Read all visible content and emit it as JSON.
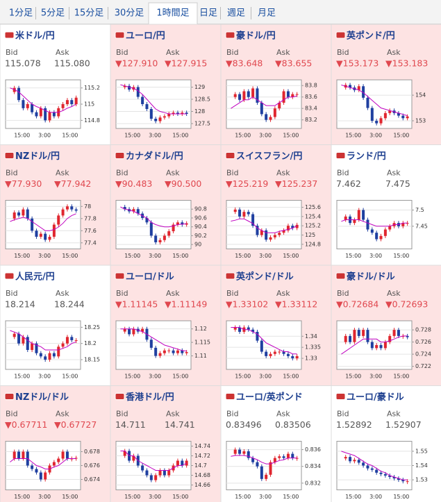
{
  "tabs": [
    "1分足",
    "5分足",
    "15分足",
    "30分足",
    "1時間足",
    "日足",
    "週足",
    "月足"
  ],
  "selected_tab": 4,
  "labels": {
    "bid": "Bid",
    "ask": "Ask"
  },
  "xticks": [
    "15:00",
    "3:00",
    "15:00"
  ],
  "charts": [
    {
      "pair": "米ドル/円",
      "bid": "115.078",
      "ask": "115.080",
      "highlight": false,
      "down": false,
      "ylim": [
        114.7,
        115.3
      ],
      "yticks": [
        114.8,
        115,
        115.2
      ],
      "close": [
        115.15,
        115.2,
        115.05,
        114.95,
        115.0,
        114.9,
        114.85,
        114.95,
        114.8,
        114.9,
        114.85,
        114.95,
        115.0,
        115.05,
        115.0,
        115.08
      ],
      "ma": [
        115.2,
        115.18,
        115.15,
        115.1,
        115.05,
        115.0,
        114.97,
        114.95,
        114.92,
        114.9,
        114.9,
        114.9,
        114.92,
        114.95,
        114.97,
        115.0
      ]
    },
    {
      "pair": "ユーロ/円",
      "bid": "▼127.910",
      "ask": "▼127.915",
      "highlight": true,
      "down": true,
      "ylim": [
        127.3,
        129.3
      ],
      "yticks": [
        127.5,
        128,
        128.5,
        129
      ],
      "close": [
        129.0,
        129.05,
        128.9,
        129.0,
        128.6,
        128.3,
        128.1,
        127.7,
        127.6,
        127.75,
        127.8,
        127.9,
        127.95,
        127.9,
        127.95,
        127.9
      ],
      "ma": [
        129.1,
        129.05,
        129.0,
        128.95,
        128.85,
        128.7,
        128.5,
        128.3,
        128.1,
        128.0,
        127.95,
        127.9,
        127.9,
        127.9,
        127.9,
        127.9
      ]
    },
    {
      "pair": "豪ドル/円",
      "bid": "▼83.648",
      "ask": "▼83.655",
      "highlight": true,
      "down": true,
      "ylim": [
        83.05,
        83.9
      ],
      "yticks": [
        83.2,
        83.4,
        83.6,
        83.8
      ],
      "close": [
        83.6,
        83.65,
        83.55,
        83.7,
        83.6,
        83.75,
        83.5,
        83.3,
        83.2,
        83.25,
        83.4,
        83.5,
        83.7,
        83.6,
        83.65,
        83.65
      ],
      "ma": [
        83.4,
        83.45,
        83.5,
        83.55,
        83.55,
        83.6,
        83.55,
        83.5,
        83.45,
        83.45,
        83.45,
        83.5,
        83.55,
        83.6,
        83.6,
        83.62
      ]
    },
    {
      "pair": "英ポンド/円",
      "bid": "▼153.173",
      "ask": "▼153.183",
      "highlight": true,
      "down": true,
      "ylim": [
        152.7,
        154.6
      ],
      "yticks": [
        153,
        154
      ],
      "close": [
        154.3,
        154.4,
        154.3,
        154.2,
        154.35,
        153.9,
        153.5,
        153.0,
        152.9,
        153.1,
        153.3,
        153.4,
        153.3,
        153.2,
        153.1,
        153.17
      ],
      "ma": [
        154.4,
        154.35,
        154.3,
        154.25,
        154.2,
        154.1,
        153.95,
        153.8,
        153.65,
        153.5,
        153.45,
        153.4,
        153.35,
        153.3,
        153.25,
        153.2
      ]
    },
    {
      "pair": "NZドル/円",
      "bid": "▼77.930",
      "ask": "▼77.942",
      "highlight": true,
      "down": true,
      "ylim": [
        77.3,
        78.1
      ],
      "yticks": [
        77.4,
        77.6,
        77.8,
        78
      ],
      "close": [
        77.8,
        77.9,
        77.85,
        77.95,
        77.8,
        77.6,
        77.5,
        77.55,
        77.45,
        77.5,
        77.7,
        77.85,
        77.95,
        78.0,
        77.95,
        77.93
      ],
      "ma": [
        77.75,
        77.78,
        77.8,
        77.82,
        77.8,
        77.75,
        77.7,
        77.65,
        77.6,
        77.6,
        77.62,
        77.66,
        77.72,
        77.8,
        77.85,
        77.88
      ]
    },
    {
      "pair": "カナダドル/円",
      "bid": "▼90.483",
      "ask": "▼90.500",
      "highlight": true,
      "down": true,
      "ylim": [
        89.9,
        91.0
      ],
      "yticks": [
        90,
        90.2,
        90.4,
        90.6,
        90.8
      ],
      "close": [
        90.85,
        90.8,
        90.75,
        90.8,
        90.7,
        90.6,
        90.5,
        90.2,
        90.05,
        90.1,
        90.2,
        90.3,
        90.45,
        90.5,
        90.45,
        90.48
      ],
      "ma": [
        90.85,
        90.8,
        90.78,
        90.75,
        90.7,
        90.65,
        90.6,
        90.5,
        90.45,
        90.42,
        90.4,
        90.4,
        90.42,
        90.45,
        90.46,
        90.47
      ]
    },
    {
      "pair": "スイスフラン/円",
      "bid": "▼125.219",
      "ask": "▼125.237",
      "highlight": true,
      "down": true,
      "ylim": [
        124.7,
        125.75
      ],
      "yticks": [
        124.8,
        125,
        125.2,
        125.4,
        125.6
      ],
      "close": [
        125.5,
        125.55,
        125.4,
        125.5,
        125.45,
        125.2,
        125.0,
        125.1,
        124.9,
        124.95,
        125.0,
        125.05,
        125.1,
        125.2,
        125.15,
        125.22
      ],
      "ma": [
        125.3,
        125.32,
        125.35,
        125.35,
        125.3,
        125.25,
        125.15,
        125.1,
        125.05,
        125.05,
        125.05,
        125.08,
        125.1,
        125.12,
        125.15,
        125.2
      ]
    },
    {
      "pair": "ランド/円",
      "bid": "7.462",
      "ask": "7.475",
      "highlight": false,
      "down": false,
      "ylim": [
        7.38,
        7.53
      ],
      "yticks": [
        7.45,
        7.5
      ],
      "close": [
        7.47,
        7.48,
        7.46,
        7.47,
        7.5,
        7.47,
        7.44,
        7.43,
        7.41,
        7.42,
        7.44,
        7.45,
        7.46,
        7.45,
        7.46,
        7.46
      ],
      "ma": [
        7.465,
        7.47,
        7.47,
        7.47,
        7.47,
        7.465,
        7.46,
        7.455,
        7.45,
        7.45,
        7.45,
        7.45,
        7.455,
        7.455,
        7.46,
        7.46
      ]
    },
    {
      "pair": "人民元/円",
      "bid": "18.214",
      "ask": "18.244",
      "highlight": false,
      "down": false,
      "ylim": [
        18.12,
        18.27
      ],
      "yticks": [
        18.15,
        18.2,
        18.25
      ],
      "close": [
        18.22,
        18.23,
        18.2,
        18.22,
        18.18,
        18.2,
        18.17,
        18.16,
        18.15,
        18.17,
        18.16,
        18.19,
        18.2,
        18.22,
        18.21,
        18.21
      ],
      "ma": [
        18.24,
        18.235,
        18.23,
        18.22,
        18.21,
        18.2,
        18.195,
        18.19,
        18.18,
        18.18,
        18.18,
        18.18,
        18.185,
        18.19,
        18.2,
        18.205
      ]
    },
    {
      "pair": "ユーロ/ドル",
      "bid": "▼1.11145",
      "ask": "▼1.11149",
      "highlight": true,
      "down": true,
      "ylim": [
        1.105,
        1.123
      ],
      "yticks": [
        1.11,
        1.115,
        1.12
      ],
      "close": [
        1.119,
        1.12,
        1.118,
        1.12,
        1.119,
        1.12,
        1.116,
        1.113,
        1.11,
        1.111,
        1.112,
        1.112,
        1.111,
        1.112,
        1.111,
        1.1114
      ],
      "ma": [
        1.12,
        1.12,
        1.12,
        1.12,
        1.1195,
        1.119,
        1.118,
        1.117,
        1.116,
        1.115,
        1.114,
        1.1135,
        1.113,
        1.1125,
        1.112,
        1.1118
      ]
    },
    {
      "pair": "英ポンド/ドル",
      "bid": "▼1.33102",
      "ask": "▼1.33112",
      "highlight": true,
      "down": true,
      "ylim": [
        1.325,
        1.347
      ],
      "yticks": [
        1.33,
        1.335,
        1.34
      ],
      "close": [
        1.343,
        1.344,
        1.342,
        1.344,
        1.343,
        1.342,
        1.338,
        1.333,
        1.331,
        1.332,
        1.333,
        1.333,
        1.332,
        1.331,
        1.33,
        1.331
      ],
      "ma": [
        1.344,
        1.344,
        1.344,
        1.343,
        1.343,
        1.342,
        1.341,
        1.339,
        1.337,
        1.336,
        1.335,
        1.334,
        1.333,
        1.333,
        1.332,
        1.332
      ]
    },
    {
      "pair": "豪ドル/ドル",
      "bid": "▼0.72684",
      "ask": "▼0.72693",
      "highlight": true,
      "down": true,
      "ylim": [
        0.7215,
        0.7295
      ],
      "yticks": [
        0.722,
        0.724,
        0.726,
        0.728
      ],
      "close": [
        0.726,
        0.727,
        0.726,
        0.728,
        0.727,
        0.728,
        0.726,
        0.725,
        0.7255,
        0.725,
        0.726,
        0.727,
        0.728,
        0.727,
        0.727,
        0.7268
      ],
      "ma": [
        0.724,
        0.7245,
        0.725,
        0.7255,
        0.726,
        0.7265,
        0.7265,
        0.7265,
        0.7265,
        0.726,
        0.726,
        0.7262,
        0.7265,
        0.7268,
        0.727,
        0.727
      ]
    },
    {
      "pair": "NZドル/ドル",
      "bid": "▼0.67711",
      "ask": "▼0.67727",
      "highlight": true,
      "down": true,
      "ylim": [
        0.6725,
        0.6795
      ],
      "yticks": [
        0.674,
        0.676,
        0.678
      ],
      "close": [
        0.677,
        0.678,
        0.677,
        0.678,
        0.676,
        0.6755,
        0.675,
        0.674,
        0.675,
        0.676,
        0.6765,
        0.677,
        0.678,
        0.677,
        0.677,
        0.6771
      ],
      "ma": [
        0.6765,
        0.677,
        0.677,
        0.677,
        0.677,
        0.6765,
        0.676,
        0.6758,
        0.6755,
        0.6755,
        0.6758,
        0.676,
        0.6765,
        0.677,
        0.677,
        0.677
      ]
    },
    {
      "pair": "香港ドル/円",
      "bid": "14.711",
      "ask": "14.741",
      "highlight": true,
      "down": false,
      "ylim": [
        14.65,
        14.75
      ],
      "yticks": [
        14.66,
        14.68,
        14.7,
        14.72,
        14.74
      ],
      "close": [
        14.72,
        14.73,
        14.71,
        14.72,
        14.7,
        14.69,
        14.68,
        14.67,
        14.68,
        14.69,
        14.68,
        14.69,
        14.7,
        14.71,
        14.7,
        14.71
      ],
      "ma": [
        14.73,
        14.73,
        14.72,
        14.72,
        14.71,
        14.705,
        14.7,
        14.695,
        14.69,
        14.69,
        14.69,
        14.69,
        14.695,
        14.7,
        14.7,
        14.705
      ]
    },
    {
      "pair": "ユーロ/英ポンド",
      "bid": "0.83496",
      "ask": "0.83506",
      "highlight": false,
      "down": false,
      "ylim": [
        0.8312,
        0.837
      ],
      "yticks": [
        0.832,
        0.834,
        0.836
      ],
      "close": [
        0.8355,
        0.836,
        0.8355,
        0.8358,
        0.835,
        0.8345,
        0.834,
        0.8325,
        0.833,
        0.8345,
        0.835,
        0.8352,
        0.835,
        0.8355,
        0.835,
        0.835
      ],
      "ma": [
        0.8352,
        0.8353,
        0.8353,
        0.8353,
        0.8352,
        0.835,
        0.8348,
        0.8345,
        0.8343,
        0.8343,
        0.8345,
        0.8347,
        0.8348,
        0.835,
        0.835,
        0.835
      ]
    },
    {
      "pair": "ユーロ/豪ドル",
      "bid": "1.52892",
      "ask": "1.52907",
      "highlight": false,
      "down": false,
      "ylim": [
        1.523,
        1.557
      ],
      "yticks": [
        1.53,
        1.54,
        1.55
      ],
      "close": [
        1.545,
        1.546,
        1.543,
        1.544,
        1.542,
        1.54,
        1.538,
        1.537,
        1.535,
        1.534,
        1.533,
        1.532,
        1.531,
        1.53,
        1.529,
        1.529
      ],
      "ma": [
        1.55,
        1.549,
        1.548,
        1.547,
        1.545,
        1.543,
        1.541,
        1.54,
        1.538,
        1.536,
        1.535,
        1.533,
        1.532,
        1.531,
        1.53,
        1.53
      ]
    }
  ]
}
